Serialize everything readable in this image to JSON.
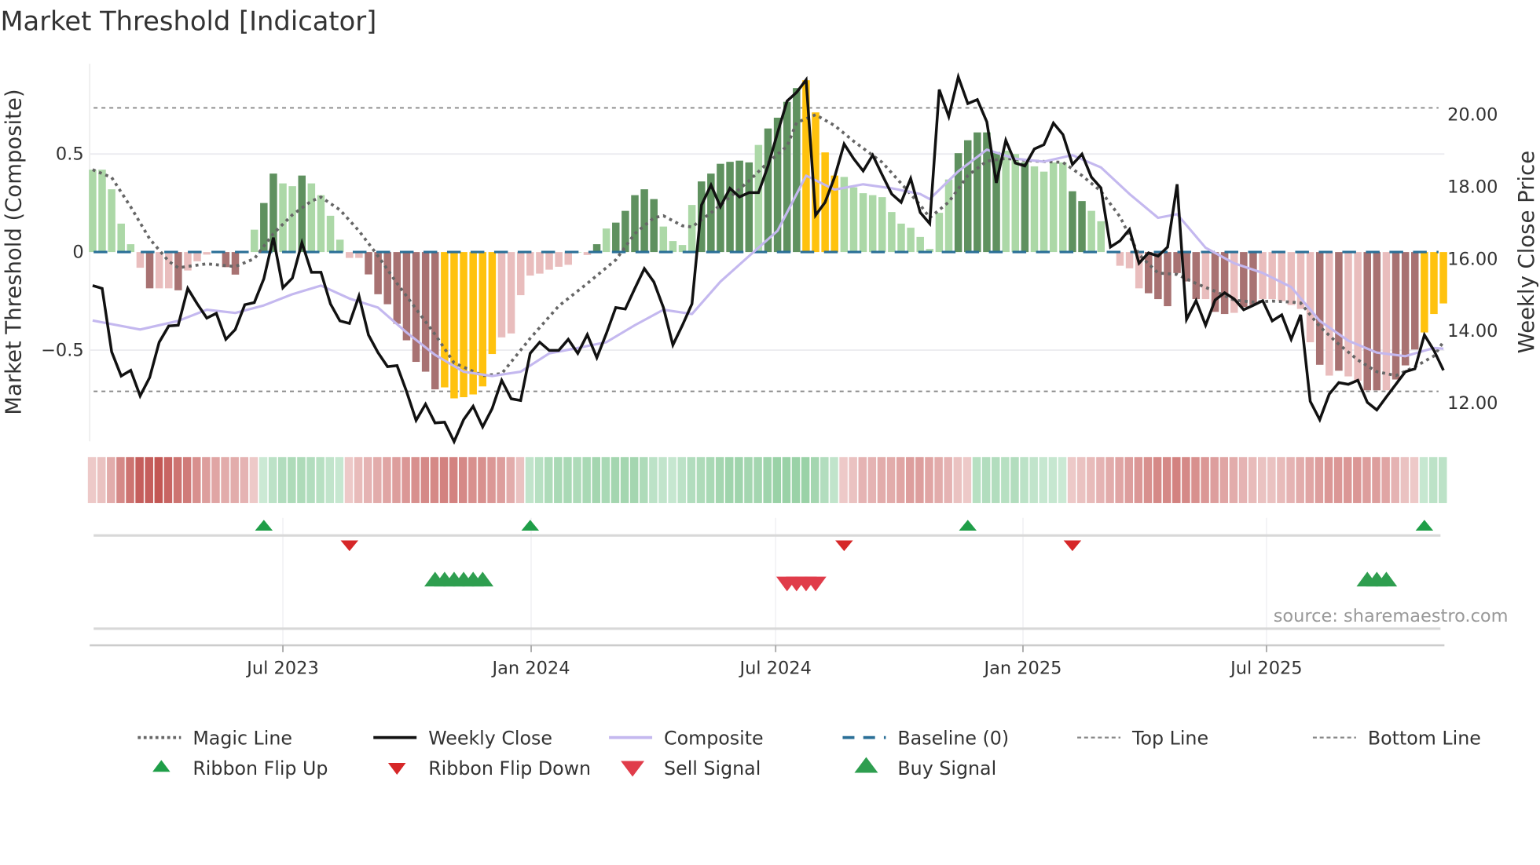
{
  "title": "Market Threshold [Indicator]",
  "source": "source: sharemaestro.com",
  "colors": {
    "bar_green_strong": "#5f915f",
    "bar_green_weak": "#acd8a7",
    "bar_red_strong": "#a87272",
    "bar_red_weak": "#e9bdbd",
    "bar_extreme": "#ffc20e",
    "ribbon_red": "#c0504d",
    "ribbon_red_light": "#f5dede",
    "ribbon_green": "#7cc48c",
    "ribbon_green_light": "#dff2e6",
    "magic": "#666666",
    "close": "#111111",
    "composite": "#c4b8ef",
    "baseline": "#2a6f97",
    "threshold": "#888888",
    "flip_up": "#1f9e48",
    "flip_down": "#d62728",
    "sell": "#e03c4a",
    "buy": "#2e9e4f"
  },
  "chart_data": {
    "type": "bar",
    "title": "Market Threshold [Indicator]",
    "ylabel": "Market Threshold (Composite)",
    "y2label": "Weekly Close Price",
    "ylim": [
      -0.96,
      0.96
    ],
    "y2lim": [
      10.8,
      21.8
    ],
    "yticks": [
      {
        "v": 0.5,
        "label": "0.5"
      },
      {
        "v": 0,
        "label": "0"
      },
      {
        "v": -0.5,
        "label": "−0.5"
      }
    ],
    "y2ticks": [
      {
        "v": 20,
        "label": "20.00"
      },
      {
        "v": 18,
        "label": "18.00"
      },
      {
        "v": 16,
        "label": "16.00"
      },
      {
        "v": 14,
        "label": "14.00"
      },
      {
        "v": 12,
        "label": "12.00"
      }
    ],
    "xticks": [
      {
        "week": 21,
        "label": "Jul 2023"
      },
      {
        "week": 47.1,
        "label": "Jan 2024"
      },
      {
        "week": 72.8,
        "label": "Jul 2024"
      },
      {
        "week": 98.8,
        "label": "Jan 2025"
      },
      {
        "week": 124.4,
        "label": "Jul 2025"
      }
    ],
    "weeks": 143,
    "top_line": 0.735,
    "bottom_line": -0.71,
    "baseline": 0,
    "composite_bars": [
      0.42,
      0.42,
      0.32,
      0.145,
      0.04,
      -0.08,
      -0.185,
      -0.185,
      -0.185,
      -0.195,
      -0.094,
      -0.047,
      -0.013,
      0,
      -0.077,
      -0.115,
      0,
      0.114,
      0.25,
      0.4,
      0.35,
      0.336,
      0.39,
      0.35,
      0.29,
      0.185,
      0.063,
      -0.03,
      -0.03,
      -0.114,
      -0.215,
      -0.266,
      -0.366,
      -0.45,
      -0.56,
      -0.61,
      -0.7,
      -0.69,
      -0.746,
      -0.74,
      -0.726,
      -0.685,
      -0.52,
      -0.435,
      -0.415,
      -0.22,
      -0.12,
      -0.11,
      -0.09,
      -0.075,
      -0.065,
      0,
      -0.015,
      0.04,
      0.12,
      0.15,
      0.21,
      0.29,
      0.32,
      0.27,
      0.13,
      0.056,
      0.036,
      0.24,
      0.36,
      0.4,
      0.45,
      0.46,
      0.466,
      0.457,
      0.546,
      0.63,
      0.685,
      0.766,
      0.836,
      0.876,
      0.712,
      0.508,
      0.39,
      0.383,
      0.33,
      0.3,
      0.29,
      0.28,
      0.204,
      0.145,
      0.124,
      0.077,
      0.016,
      0.2,
      0.37,
      0.504,
      0.57,
      0.61,
      0.61,
      0.51,
      0.517,
      0.5,
      0.457,
      0.437,
      0.41,
      0.457,
      0.457,
      0.31,
      0.26,
      0.21,
      0.157,
      0.003,
      -0.07,
      -0.083,
      -0.185,
      -0.21,
      -0.24,
      -0.276,
      -0.107,
      -0.15,
      -0.24,
      -0.24,
      -0.305,
      -0.316,
      -0.31,
      -0.28,
      -0.27,
      -0.24,
      -0.24,
      -0.25,
      -0.27,
      -0.29,
      -0.46,
      -0.575,
      -0.63,
      -0.605,
      -0.634,
      -0.656,
      -0.705,
      -0.705,
      -0.705,
      -0.65,
      -0.578,
      -0.497,
      -0.41,
      -0.316,
      -0.262
    ],
    "bar_strength": "lllllldlldllllddllddlldllllllddddddddyyyyyylllllllllldldddddllllddddddlddddyyyylllllllllllldddddlldllllddllllllddddddlddlddlllllldldllddldddyyyllllll",
    "weekly_close": [
      15.26,
      15.18,
      13.42,
      12.75,
      12.91,
      12.2,
      12.71,
      13.69,
      14.14,
      14.16,
      15.18,
      14.75,
      14.36,
      14.49,
      13.77,
      14.04,
      14.73,
      14.79,
      15.45,
      16.59,
      15.2,
      15.47,
      16.45,
      15.63,
      15.63,
      14.75,
      14.28,
      14.21,
      14.97,
      13.89,
      13.4,
      13.01,
      13.04,
      12.32,
      11.52,
      11.97,
      11.45,
      11.47,
      10.93,
      11.54,
      11.91,
      11.34,
      11.85,
      12.63,
      12.12,
      12.07,
      13.38,
      13.69,
      13.46,
      13.46,
      13.77,
      13.38,
      13.9,
      13.26,
      13.93,
      14.65,
      14.61,
      15.18,
      15.73,
      15.36,
      14.65,
      13.61,
      14.16,
      14.75,
      17.49,
      18.05,
      17.45,
      17.96,
      17.72,
      17.84,
      17.84,
      18.58,
      19.5,
      20.38,
      20.62,
      20.97,
      17.21,
      17.57,
      18.27,
      19.19,
      18.78,
      18.44,
      18.88,
      18.33,
      17.8,
      17.57,
      18.23,
      17.29,
      16.98,
      20.7,
      19.95,
      21.05,
      20.31,
      20.42,
      19.8,
      18.11,
      19.29,
      18.66,
      18.58,
      19.05,
      19.17,
      19.77,
      19.45,
      18.62,
      18.91,
      18.27,
      17.97,
      16.33,
      16.5,
      16.82,
      15.88,
      16.17,
      16.08,
      16.33,
      18.07,
      14.32,
      14.84,
      14.16,
      14.86,
      15.06,
      14.89,
      14.59,
      14.71,
      14.84,
      14.28,
      14.45,
      13.77,
      14.45,
      12.05,
      11.54,
      12.25,
      12.57,
      12.52,
      12.63,
      12.02,
      11.81,
      12.17,
      12.52,
      12.87,
      12.95,
      13.89,
      13.46,
      12.91
    ],
    "composite_line": {
      "axis": "price",
      "week": [
        1,
        6,
        10,
        13,
        16,
        19,
        22,
        25,
        28,
        31,
        34,
        37,
        40,
        43,
        46,
        49,
        52,
        55,
        58,
        61,
        64,
        67,
        70,
        73,
        76,
        79,
        82,
        85,
        88,
        89,
        92,
        95,
        98,
        101,
        104,
        107,
        110,
        113,
        115,
        118,
        121,
        124,
        127,
        130,
        133,
        136,
        139,
        142,
        143
      ],
      "value": [
        14.29,
        14.04,
        14.28,
        14.59,
        14.5,
        14.71,
        15.02,
        15.26,
        14.9,
        14.65,
        13.96,
        13.34,
        12.87,
        12.75,
        12.87,
        13.38,
        13.53,
        13.69,
        14.16,
        14.59,
        14.47,
        15.37,
        16.08,
        16.78,
        18.31,
        17.92,
        18.07,
        17.96,
        17.8,
        17.66,
        18.43,
        19.03,
        18.78,
        18.7,
        18.88,
        18.54,
        17.8,
        17.14,
        17.24,
        16.31,
        15.88,
        15.61,
        15.22,
        14.28,
        13.73,
        13.4,
        13.3,
        13.53,
        13.51
      ]
    },
    "magic_line": {
      "axis": "composite",
      "week": [
        1,
        3,
        5,
        7,
        9,
        10,
        13,
        16,
        18,
        20,
        22,
        24,
        25,
        27,
        29,
        31,
        33,
        35,
        37,
        39,
        42,
        44,
        47,
        50,
        53,
        56,
        58,
        60,
        61,
        63,
        64,
        66,
        68,
        70,
        72,
        74,
        75,
        77,
        79,
        81,
        84,
        86,
        88,
        89,
        91,
        93,
        95,
        97,
        100,
        103,
        105,
        107,
        109,
        111,
        113,
        115,
        117,
        119,
        121,
        123,
        125,
        127,
        128,
        130,
        132,
        134,
        136,
        138,
        140,
        142,
        143
      ],
      "value": [
        0.42,
        0.38,
        0.23,
        0.067,
        -0.047,
        -0.08,
        -0.06,
        -0.074,
        -0.034,
        0.094,
        0.19,
        0.26,
        0.28,
        0.215,
        0.108,
        -0.02,
        -0.16,
        -0.29,
        -0.42,
        -0.565,
        -0.63,
        -0.62,
        -0.44,
        -0.275,
        -0.16,
        -0.04,
        0.094,
        0.175,
        0.185,
        0.134,
        0.128,
        0.2,
        0.28,
        0.363,
        0.457,
        0.54,
        0.66,
        0.7,
        0.645,
        0.565,
        0.457,
        0.35,
        0.24,
        0.175,
        0.255,
        0.39,
        0.464,
        0.477,
        0.464,
        0.457,
        0.39,
        0.31,
        0.18,
        -0.013,
        -0.107,
        -0.114,
        -0.16,
        -0.2,
        -0.245,
        -0.255,
        -0.25,
        -0.255,
        -0.26,
        -0.38,
        -0.47,
        -0.55,
        -0.61,
        -0.63,
        -0.585,
        -0.53,
        -0.457
      ]
    },
    "ribbon": [
      -0.15,
      -0.2,
      -0.35,
      -0.6,
      -0.75,
      -0.9,
      -0.9,
      -0.95,
      -0.85,
      -0.75,
      -0.7,
      -0.55,
      -0.45,
      -0.4,
      -0.35,
      -0.35,
      -0.3,
      -0.15,
      0.2,
      0.35,
      0.45,
      0.5,
      0.5,
      0.45,
      0.4,
      0.3,
      0.25,
      -0.15,
      -0.25,
      -0.3,
      -0.35,
      -0.4,
      -0.45,
      -0.5,
      -0.55,
      -0.6,
      -0.6,
      -0.65,
      -0.65,
      -0.6,
      -0.55,
      -0.55,
      -0.5,
      -0.45,
      -0.35,
      -0.2,
      0.3,
      0.4,
      0.5,
      0.55,
      0.55,
      0.5,
      0.55,
      0.6,
      0.55,
      0.6,
      0.6,
      0.6,
      0.5,
      0.35,
      0.3,
      0.25,
      0.35,
      0.45,
      0.5,
      0.55,
      0.6,
      0.65,
      0.65,
      0.6,
      0.6,
      0.65,
      0.7,
      0.7,
      0.7,
      0.7,
      0.6,
      0.45,
      0.3,
      -0.15,
      -0.2,
      -0.3,
      -0.3,
      -0.35,
      -0.35,
      -0.4,
      -0.45,
      -0.45,
      -0.4,
      -0.35,
      -0.3,
      -0.2,
      -0.15,
      0.4,
      0.45,
      0.45,
      0.4,
      0.45,
      0.35,
      0.3,
      0.25,
      0.25,
      0.2,
      -0.15,
      -0.2,
      -0.25,
      -0.3,
      -0.35,
      -0.4,
      -0.45,
      -0.5,
      -0.55,
      -0.6,
      -0.6,
      -0.65,
      -0.6,
      -0.55,
      -0.5,
      -0.45,
      -0.4,
      -0.35,
      -0.3,
      -0.25,
      -0.2,
      -0.2,
      -0.25,
      -0.3,
      -0.35,
      -0.4,
      -0.45,
      -0.5,
      -0.5,
      -0.5,
      -0.5,
      -0.45,
      -0.45,
      -0.4,
      -0.3,
      -0.2,
      -0.15,
      0.25,
      0.35,
      0.35
    ],
    "ribbon_flip_up": [
      19,
      47,
      93,
      141
    ],
    "ribbon_flip_down": [
      28,
      80,
      104
    ],
    "buy_signals": [
      37,
      38,
      39,
      40,
      41,
      42,
      135,
      136,
      137
    ],
    "sell_signals": [
      74,
      75,
      76,
      77
    ],
    "legend": {
      "placement": "bottom",
      "items": [
        {
          "key": "magic",
          "label": "Magic Line"
        },
        {
          "key": "close",
          "label": "Weekly Close"
        },
        {
          "key": "composite",
          "label": "Composite"
        },
        {
          "key": "baseline",
          "label": "Baseline (0)"
        },
        {
          "key": "top",
          "label": "Top Line"
        },
        {
          "key": "bottom",
          "label": "Bottom Line"
        },
        {
          "key": "flip_up",
          "label": "Ribbon Flip Up"
        },
        {
          "key": "flip_down",
          "label": "Ribbon Flip Down"
        },
        {
          "key": "sell",
          "label": "Sell Signal"
        },
        {
          "key": "buy",
          "label": "Buy Signal"
        }
      ]
    }
  }
}
